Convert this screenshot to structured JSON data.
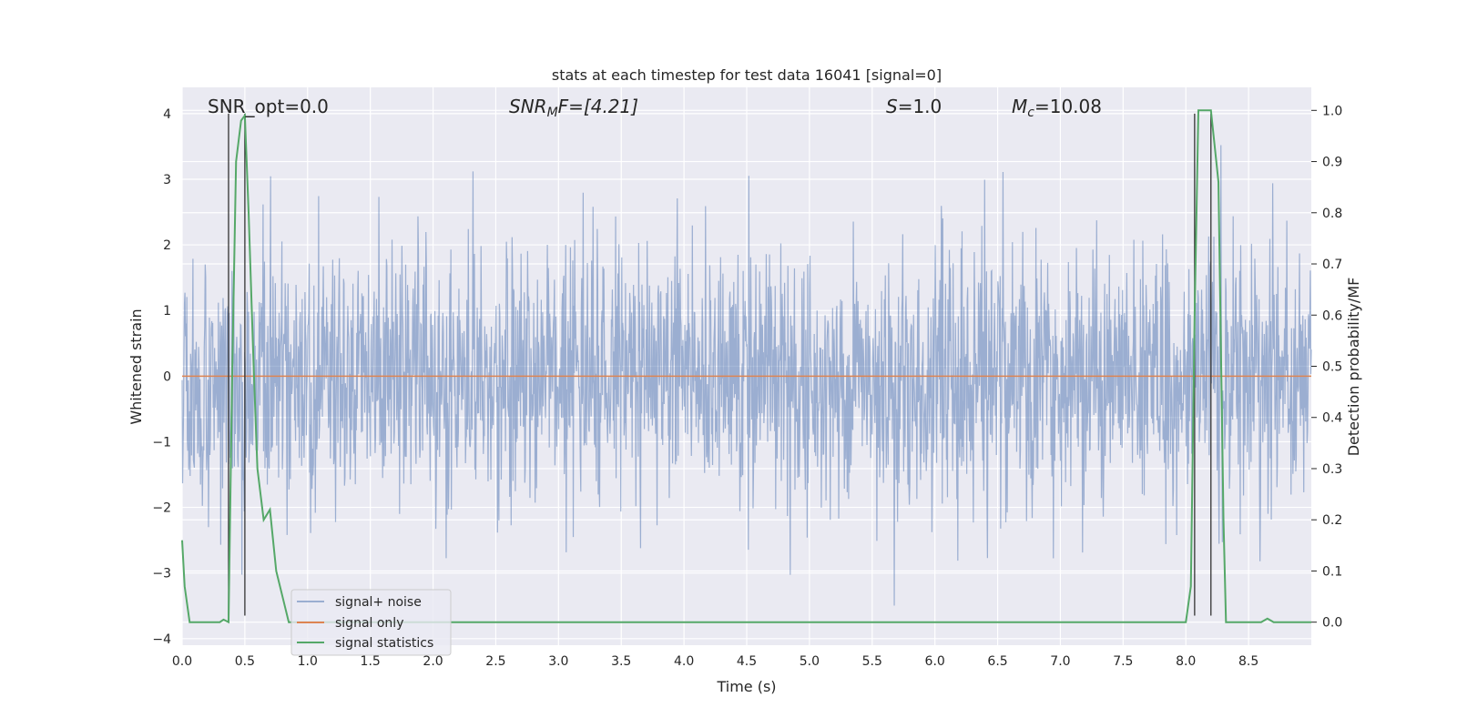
{
  "chart_data": {
    "type": "line",
    "title": "stats at each timestep for test data 16041 [signal=0]",
    "xlabel": "Time (s)",
    "ylabel": "Whitened strain",
    "y2label": "Detection probability/MF",
    "xlim": [
      0,
      9.0
    ],
    "ylim": [
      -4.1,
      4.4
    ],
    "y2lim": [
      -0.045,
      1.045
    ],
    "xticks": [
      "0.0",
      "0.5",
      "1.0",
      "1.5",
      "2.0",
      "2.5",
      "3.0",
      "3.5",
      "4.0",
      "4.5",
      "5.0",
      "5.5",
      "6.0",
      "6.5",
      "7.0",
      "7.5",
      "8.0",
      "8.5"
    ],
    "xtick_values": [
      0,
      0.5,
      1.0,
      1.5,
      2.0,
      2.5,
      3.0,
      3.5,
      4.0,
      4.5,
      5.0,
      5.5,
      6.0,
      6.5,
      7.0,
      7.5,
      8.0,
      8.5
    ],
    "yticks": [
      "−4",
      "−3",
      "−2",
      "−1",
      "0",
      "1",
      "2",
      "3",
      "4"
    ],
    "ytick_values": [
      -4,
      -3,
      -2,
      -1,
      0,
      1,
      2,
      3,
      4
    ],
    "y2ticks": [
      "0.0",
      "0.1",
      "0.2",
      "0.3",
      "0.4",
      "0.5",
      "0.6",
      "0.7",
      "0.8",
      "0.9",
      "1.0"
    ],
    "y2tick_values": [
      0,
      0.1,
      0.2,
      0.3,
      0.4,
      0.5,
      0.6,
      0.7,
      0.8,
      0.9,
      1.0
    ],
    "grid": true,
    "legend_position": "lower-left",
    "annotations": {
      "snr_opt": "SNR_opt=0.0",
      "snr_mf": "SNR",
      "snr_mf_sub": "M",
      "snr_mf_rest": "F=[4.21]",
      "s_label": "S",
      "s_value": "=1.0",
      "mc_label": "M",
      "mc_sub": "c",
      "mc_value": "=10.08"
    },
    "vertical_lines": [
      0.37,
      0.5,
      8.07,
      8.2
    ],
    "series": [
      {
        "name": "signal+ noise",
        "color": "#4c72b0",
        "opacity": 0.5,
        "noise_sigma": 1.0,
        "n_samples": 2400
      },
      {
        "name": "signal only",
        "color": "#dd8452",
        "values_constant": 0.0
      },
      {
        "name": "signal statistics",
        "color": "#55a868",
        "axis": "right",
        "x": [
          0.0,
          0.02,
          0.06,
          0.1,
          0.15,
          0.2,
          0.25,
          0.3,
          0.33,
          0.37,
          0.4,
          0.43,
          0.47,
          0.5,
          0.53,
          0.57,
          0.6,
          0.65,
          0.7,
          0.75,
          0.8,
          0.85,
          0.9,
          1.0,
          1.5,
          2.0,
          3.0,
          4.0,
          5.0,
          6.0,
          7.0,
          7.9,
          8.0,
          8.04,
          8.07,
          8.1,
          8.13,
          8.2,
          8.26,
          8.3,
          8.32,
          8.35,
          8.5,
          8.6,
          8.65,
          8.7,
          8.8,
          9.0
        ],
        "y": [
          0.16,
          0.07,
          0.0,
          0.0,
          0.0,
          0.0,
          0.0,
          0.0,
          0.005,
          0.0,
          0.5,
          0.9,
          0.98,
          0.99,
          0.8,
          0.5,
          0.3,
          0.2,
          0.22,
          0.1,
          0.05,
          0.0,
          0.0,
          0.0,
          0.0,
          0.0,
          0.0,
          0.0,
          0.0,
          0.0,
          0.0,
          0.0,
          0.0,
          0.07,
          0.6,
          1.0,
          1.0,
          1.0,
          0.86,
          0.2,
          0.0,
          0.0,
          0.0,
          0.0,
          0.007,
          0.0,
          0.0,
          0.0
        ]
      }
    ]
  }
}
